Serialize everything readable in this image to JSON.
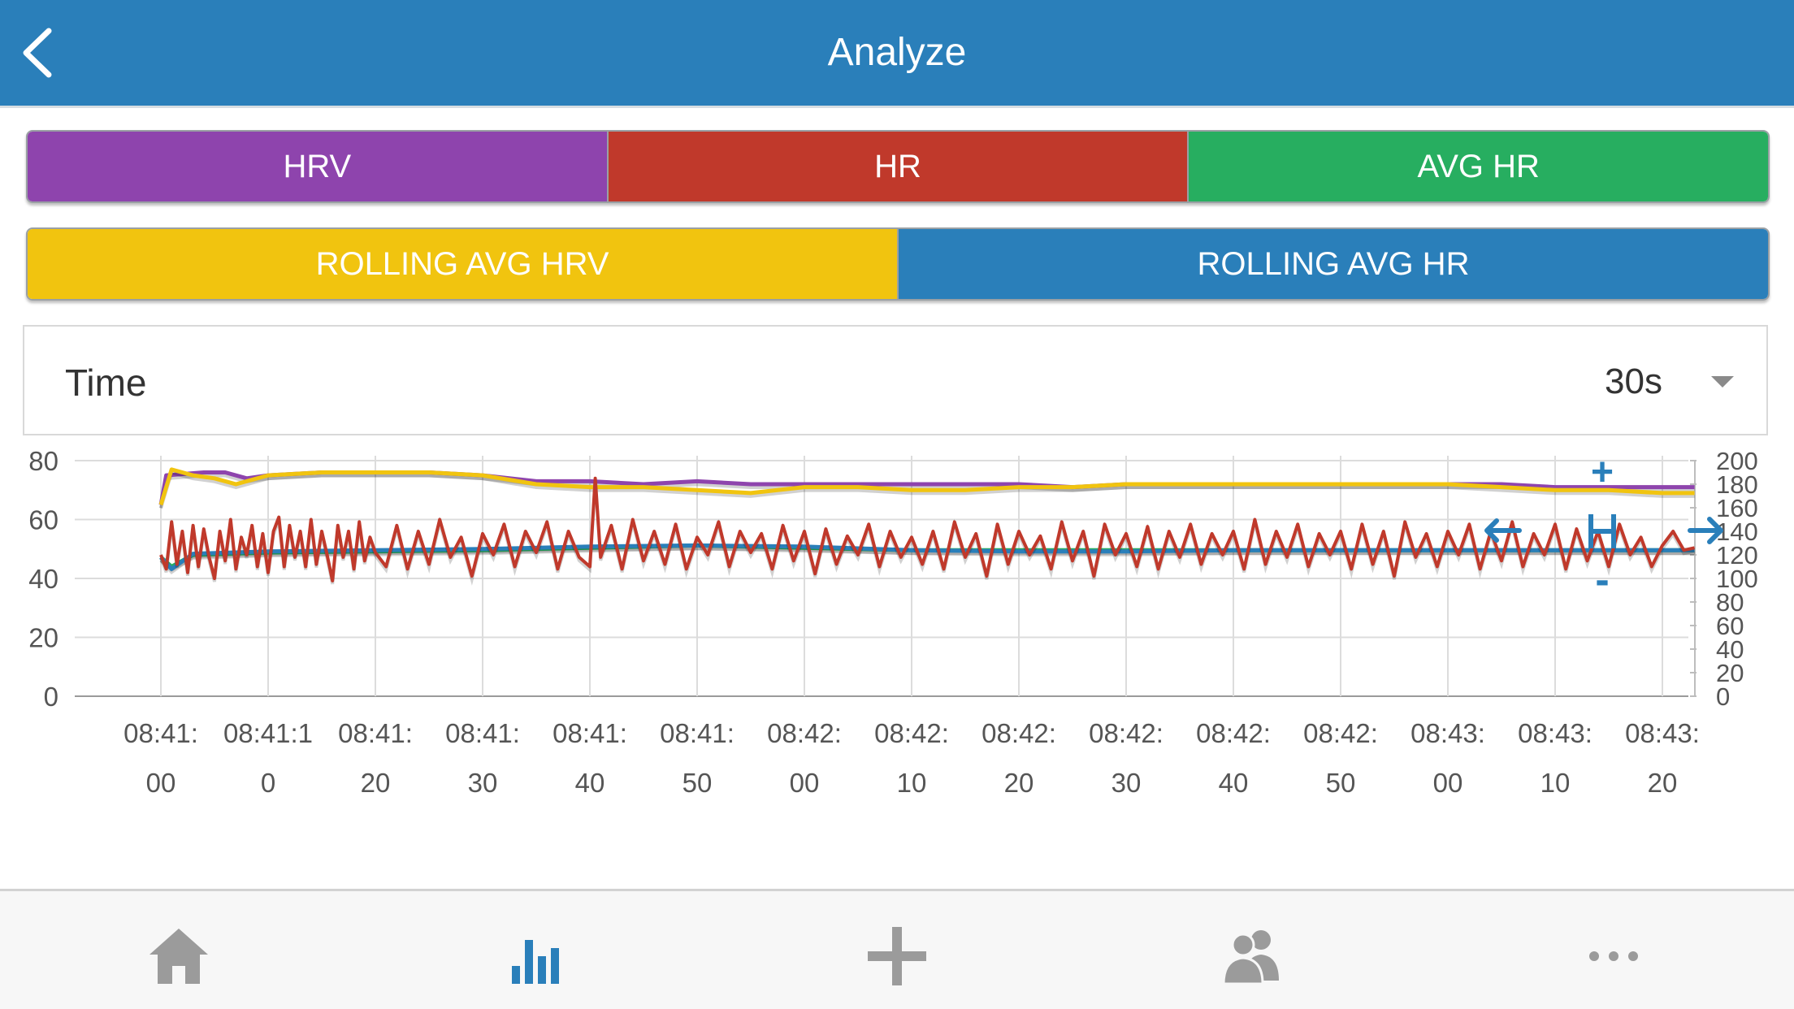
{
  "header": {
    "title": "Analyze"
  },
  "filters": {
    "row1": [
      {
        "label": "HRV",
        "color": "#8e44ad"
      },
      {
        "label": "HR",
        "color": "#c0392b"
      },
      {
        "label": "AVG HR",
        "color": "#27ae60"
      }
    ],
    "row2": [
      {
        "label": "ROLLING AVG HRV",
        "color": "#f1c40f"
      },
      {
        "label": "ROLLING AVG HR",
        "color": "#2a7fba"
      }
    ]
  },
  "time": {
    "label": "Time",
    "value": "30s"
  },
  "chart_data": {
    "type": "line",
    "x_categories": [
      "08:41:00",
      "08:41:10",
      "08:41:20",
      "08:41:30",
      "08:41:40",
      "08:41:50",
      "08:42:00",
      "08:42:10",
      "08:42:20",
      "08:42:30",
      "08:42:40",
      "08:42:50",
      "08:43:00",
      "08:43:10",
      "08:43:20"
    ],
    "x_tick_labels": [
      [
        "08:41:",
        "00"
      ],
      [
        "08:41:1",
        "0"
      ],
      [
        "08:41:",
        "20"
      ],
      [
        "08:41:",
        "30"
      ],
      [
        "08:41:",
        "40"
      ],
      [
        "08:41:",
        "50"
      ],
      [
        "08:42:",
        "00"
      ],
      [
        "08:42:",
        "10"
      ],
      [
        "08:42:",
        "20"
      ],
      [
        "08:42:",
        "30"
      ],
      [
        "08:42:",
        "40"
      ],
      [
        "08:42:",
        "50"
      ],
      [
        "08:43:",
        "00"
      ],
      [
        "08:43:",
        "10"
      ],
      [
        "08:43:",
        "20"
      ]
    ],
    "y_left": {
      "ticks": [
        "80",
        "60",
        "40",
        "20",
        "0"
      ],
      "range": [
        0,
        80
      ]
    },
    "y_right": {
      "ticks": [
        "200",
        "180",
        "160",
        "140",
        "120",
        "100",
        "80",
        "60",
        "40",
        "20",
        "0"
      ],
      "range": [
        0,
        200
      ]
    },
    "series": [
      {
        "key": "hrv",
        "axis": "left",
        "color": "#8e44ad",
        "points": [
          [
            0,
            65
          ],
          [
            0.05,
            75
          ],
          [
            0.4,
            76
          ],
          [
            0.6,
            76
          ],
          [
            0.8,
            74
          ],
          [
            1,
            75
          ],
          [
            1.5,
            76
          ],
          [
            2,
            76
          ],
          [
            2.5,
            76
          ],
          [
            3,
            75
          ],
          [
            3.5,
            73
          ],
          [
            4,
            73
          ],
          [
            4.5,
            72
          ],
          [
            5,
            73
          ],
          [
            5.5,
            72
          ],
          [
            6,
            72
          ],
          [
            6.5,
            72
          ],
          [
            7,
            72
          ],
          [
            7.5,
            72
          ],
          [
            8,
            72
          ],
          [
            8.5,
            71
          ],
          [
            9,
            72
          ],
          [
            9.5,
            72
          ],
          [
            10,
            72
          ],
          [
            10.5,
            72
          ],
          [
            11,
            72
          ],
          [
            11.5,
            72
          ],
          [
            12,
            72
          ],
          [
            12.5,
            72
          ],
          [
            13,
            71
          ],
          [
            13.5,
            71
          ],
          [
            14,
            71
          ],
          [
            14.3,
            71
          ]
        ]
      },
      {
        "key": "rolling_hrv",
        "axis": "left",
        "color": "#f1c40f",
        "points": [
          [
            0,
            65
          ],
          [
            0.1,
            77
          ],
          [
            0.3,
            75
          ],
          [
            0.5,
            74
          ],
          [
            0.7,
            72
          ],
          [
            1,
            75
          ],
          [
            1.5,
            76
          ],
          [
            2,
            76
          ],
          [
            2.5,
            76
          ],
          [
            3,
            75
          ],
          [
            3.5,
            72
          ],
          [
            4,
            71
          ],
          [
            4.5,
            71
          ],
          [
            5,
            70
          ],
          [
            5.5,
            69
          ],
          [
            6,
            71
          ],
          [
            6.5,
            71
          ],
          [
            7,
            70
          ],
          [
            7.5,
            70
          ],
          [
            8,
            71
          ],
          [
            8.5,
            71
          ],
          [
            9,
            72
          ],
          [
            9.5,
            72
          ],
          [
            10,
            72
          ],
          [
            10.5,
            72
          ],
          [
            11,
            72
          ],
          [
            11.5,
            72
          ],
          [
            12,
            72
          ],
          [
            12.5,
            71
          ],
          [
            13,
            70
          ],
          [
            13.5,
            70
          ],
          [
            14,
            69
          ],
          [
            14.3,
            69
          ]
        ]
      },
      {
        "key": "avg_hr",
        "axis": "right",
        "color": "#27ae60",
        "points": [
          [
            0,
            118
          ],
          [
            0.1,
            110
          ],
          [
            0.3,
            120
          ],
          [
            1,
            122
          ],
          [
            2,
            123
          ],
          [
            3,
            124
          ],
          [
            4,
            126
          ],
          [
            5,
            128
          ],
          [
            6,
            126
          ],
          [
            7,
            124
          ],
          [
            8,
            124
          ],
          [
            9,
            124
          ],
          [
            10,
            124
          ],
          [
            11,
            124
          ],
          [
            12,
            124
          ],
          [
            13,
            124
          ],
          [
            14,
            124
          ],
          [
            14.3,
            124
          ]
        ]
      },
      {
        "key": "rolling_hr",
        "axis": "right",
        "color": "#2a7fba",
        "points": [
          [
            0,
            118
          ],
          [
            0.1,
            108
          ],
          [
            0.3,
            121
          ],
          [
            1,
            123
          ],
          [
            2,
            124
          ],
          [
            3,
            125
          ],
          [
            4,
            127
          ],
          [
            5,
            128
          ],
          [
            6,
            127
          ],
          [
            7,
            124
          ],
          [
            8,
            123
          ],
          [
            9,
            123
          ],
          [
            10,
            124
          ],
          [
            11,
            124
          ],
          [
            12,
            124
          ],
          [
            13,
            124
          ],
          [
            14,
            124
          ],
          [
            14.3,
            124
          ]
        ]
      },
      {
        "key": "hr",
        "axis": "right",
        "color": "#c0392b",
        "points": [
          [
            0,
            120
          ],
          [
            0.05,
            108
          ],
          [
            0.1,
            148
          ],
          [
            0.15,
            112
          ],
          [
            0.2,
            140
          ],
          [
            0.25,
            105
          ],
          [
            0.3,
            145
          ],
          [
            0.35,
            110
          ],
          [
            0.4,
            142
          ],
          [
            0.45,
            118
          ],
          [
            0.5,
            100
          ],
          [
            0.55,
            140
          ],
          [
            0.6,
            115
          ],
          [
            0.65,
            150
          ],
          [
            0.7,
            108
          ],
          [
            0.75,
            135
          ],
          [
            0.8,
            120
          ],
          [
            0.85,
            145
          ],
          [
            0.9,
            110
          ],
          [
            0.95,
            138
          ],
          [
            1,
            105
          ],
          [
            1.05,
            140
          ],
          [
            1.1,
            152
          ],
          [
            1.15,
            110
          ],
          [
            1.2,
            145
          ],
          [
            1.25,
            118
          ],
          [
            1.3,
            140
          ],
          [
            1.35,
            110
          ],
          [
            1.4,
            150
          ],
          [
            1.45,
            112
          ],
          [
            1.5,
            140
          ],
          [
            1.55,
            120
          ],
          [
            1.6,
            98
          ],
          [
            1.65,
            145
          ],
          [
            1.7,
            118
          ],
          [
            1.75,
            140
          ],
          [
            1.8,
            108
          ],
          [
            1.85,
            148
          ],
          [
            1.9,
            115
          ],
          [
            1.95,
            135
          ],
          [
            2,
            122
          ],
          [
            2.1,
            110
          ],
          [
            2.2,
            145
          ],
          [
            2.3,
            108
          ],
          [
            2.4,
            140
          ],
          [
            2.5,
            112
          ],
          [
            2.6,
            150
          ],
          [
            2.7,
            118
          ],
          [
            2.8,
            135
          ],
          [
            2.9,
            102
          ],
          [
            3,
            138
          ],
          [
            3.1,
            120
          ],
          [
            3.2,
            146
          ],
          [
            3.3,
            110
          ],
          [
            3.4,
            140
          ],
          [
            3.5,
            122
          ],
          [
            3.6,
            148
          ],
          [
            3.7,
            108
          ],
          [
            3.8,
            140
          ],
          [
            3.9,
            118
          ],
          [
            4,
            110
          ],
          [
            4.05,
            185
          ],
          [
            4.1,
            118
          ],
          [
            4.2,
            145
          ],
          [
            4.3,
            108
          ],
          [
            4.4,
            150
          ],
          [
            4.5,
            115
          ],
          [
            4.6,
            140
          ],
          [
            4.7,
            112
          ],
          [
            4.8,
            146
          ],
          [
            4.9,
            108
          ],
          [
            5,
            135
          ],
          [
            5.1,
            120
          ],
          [
            5.2,
            148
          ],
          [
            5.3,
            110
          ],
          [
            5.4,
            140
          ],
          [
            5.5,
            122
          ],
          [
            5.6,
            138
          ],
          [
            5.7,
            108
          ],
          [
            5.8,
            145
          ],
          [
            5.9,
            115
          ],
          [
            6,
            140
          ],
          [
            6.1,
            104
          ],
          [
            6.2,
            142
          ],
          [
            6.3,
            112
          ],
          [
            6.4,
            136
          ],
          [
            6.5,
            120
          ],
          [
            6.6,
            146
          ],
          [
            6.7,
            110
          ],
          [
            6.8,
            140
          ],
          [
            6.9,
            118
          ],
          [
            7,
            135
          ],
          [
            7.1,
            112
          ],
          [
            7.2,
            140
          ],
          [
            7.3,
            108
          ],
          [
            7.4,
            148
          ],
          [
            7.5,
            118
          ],
          [
            7.6,
            138
          ],
          [
            7.7,
            102
          ],
          [
            7.8,
            146
          ],
          [
            7.9,
            112
          ],
          [
            8,
            140
          ],
          [
            8.1,
            120
          ],
          [
            8.2,
            136
          ],
          [
            8.3,
            108
          ],
          [
            8.4,
            148
          ],
          [
            8.5,
            115
          ],
          [
            8.6,
            140
          ],
          [
            8.7,
            102
          ],
          [
            8.8,
            146
          ],
          [
            8.9,
            120
          ],
          [
            9,
            138
          ],
          [
            9.1,
            110
          ],
          [
            9.2,
            144
          ],
          [
            9.3,
            108
          ],
          [
            9.4,
            140
          ],
          [
            9.5,
            118
          ],
          [
            9.6,
            146
          ],
          [
            9.7,
            112
          ],
          [
            9.8,
            138
          ],
          [
            9.9,
            120
          ],
          [
            10,
            140
          ],
          [
            10.1,
            108
          ],
          [
            10.2,
            150
          ],
          [
            10.3,
            112
          ],
          [
            10.4,
            140
          ],
          [
            10.5,
            118
          ],
          [
            10.6,
            146
          ],
          [
            10.7,
            110
          ],
          [
            10.8,
            138
          ],
          [
            10.9,
            120
          ],
          [
            11,
            140
          ],
          [
            11.1,
            108
          ],
          [
            11.2,
            146
          ],
          [
            11.3,
            112
          ],
          [
            11.4,
            140
          ],
          [
            11.5,
            102
          ],
          [
            11.6,
            148
          ],
          [
            11.7,
            118
          ],
          [
            11.8,
            138
          ],
          [
            11.9,
            110
          ],
          [
            12,
            140
          ],
          [
            12.1,
            120
          ],
          [
            12.2,
            146
          ],
          [
            12.3,
            108
          ],
          [
            12.4,
            140
          ],
          [
            12.5,
            115
          ],
          [
            12.6,
            148
          ],
          [
            12.7,
            110
          ],
          [
            12.8,
            138
          ],
          [
            12.9,
            120
          ],
          [
            13,
            146
          ],
          [
            13.1,
            108
          ],
          [
            13.2,
            142
          ],
          [
            13.3,
            115
          ],
          [
            13.4,
            140
          ],
          [
            13.5,
            110
          ],
          [
            13.6,
            146
          ],
          [
            13.7,
            120
          ],
          [
            13.8,
            135
          ],
          [
            13.9,
            110
          ],
          [
            14,
            128
          ],
          [
            14.1,
            140
          ],
          [
            14.2,
            124
          ],
          [
            14.3,
            126
          ]
        ]
      }
    ],
    "controls": {
      "zoom_in": "+",
      "zoom_out": "-"
    }
  },
  "tabbar": {
    "items": [
      {
        "name": "tab-home",
        "icon": "home-icon"
      },
      {
        "name": "tab-analyze",
        "icon": "bar-chart-icon",
        "active": true
      },
      {
        "name": "tab-add",
        "icon": "plus-icon"
      },
      {
        "name": "tab-people",
        "icon": "people-icon"
      },
      {
        "name": "tab-more",
        "icon": "more-icon"
      }
    ],
    "active_color": "#2a7fba",
    "inactive_color": "#9b9b9b"
  }
}
